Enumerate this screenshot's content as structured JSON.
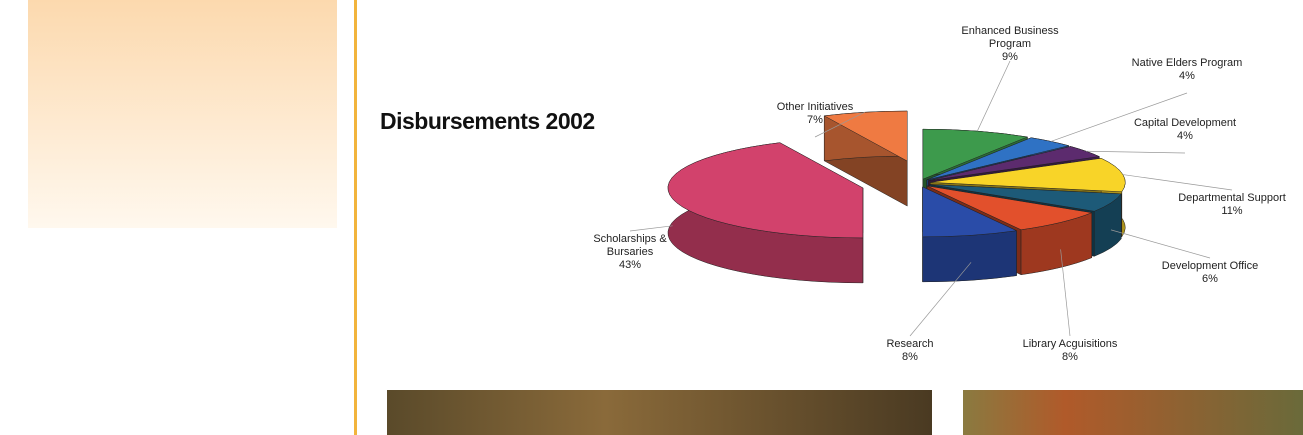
{
  "chart_data": {
    "type": "pie",
    "title": "Disbursements 2002",
    "categories": [
      "Enhanced Business Program",
      "Native Elders Program",
      "Capital Development",
      "Departmental Support",
      "Development Office",
      "Library Acguisitions",
      "Research",
      "Scholarships & Bursaries",
      "Other Initiatives"
    ],
    "values": [
      9,
      4,
      4,
      11,
      6,
      8,
      8,
      43,
      7
    ],
    "value_labels": [
      "9%",
      "4%",
      "4%",
      "11%",
      "6%",
      "8%",
      "8%",
      "43%",
      "7%"
    ],
    "colors": [
      "#3d9a4c",
      "#2f72c4",
      "#5c2b6e",
      "#f8d428",
      "#1d5a78",
      "#e2502c",
      "#2a4ca8",
      "#d2426c",
      "#ef7a42"
    ]
  }
}
